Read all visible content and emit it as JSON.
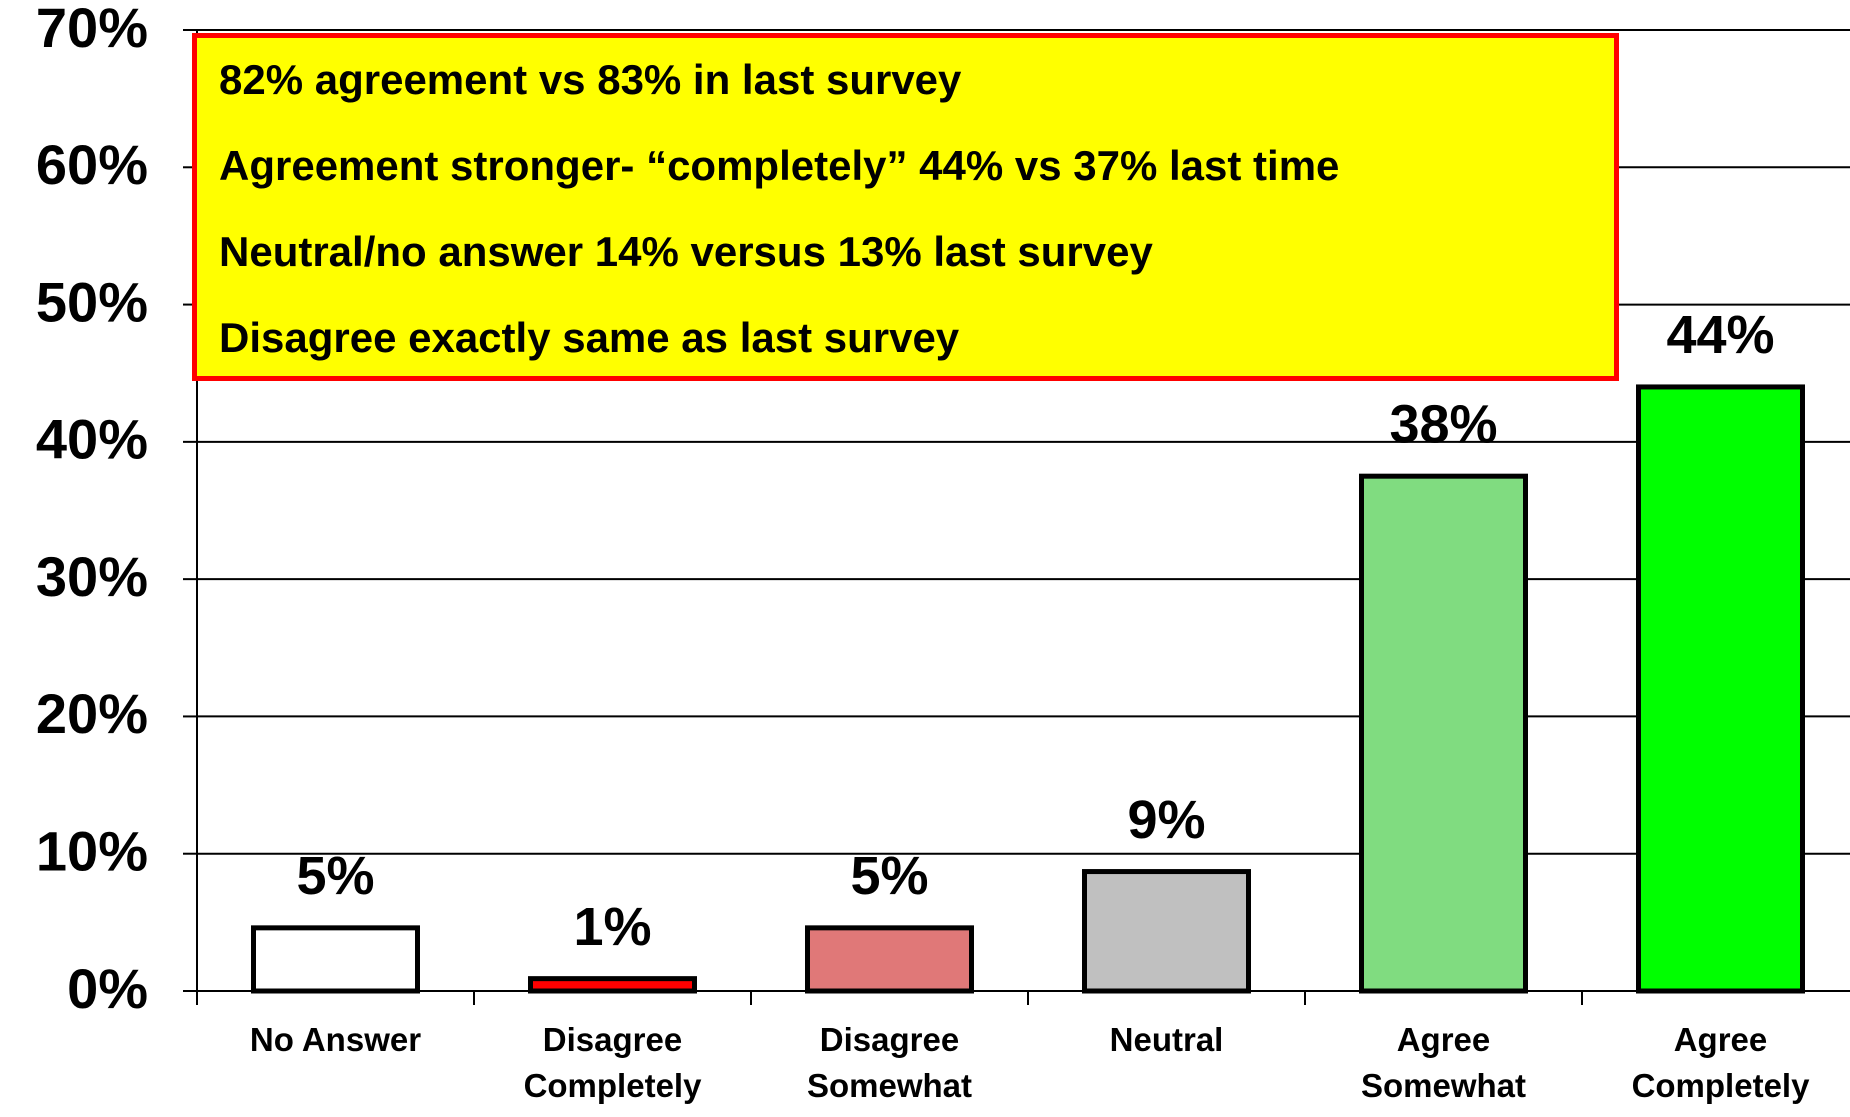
{
  "chart_data": {
    "type": "bar",
    "categories": [
      "No Answer",
      "Disagree Completely",
      "Disagree Somewhat",
      "Neutral",
      "Agree Somewhat",
      "Agree Completely"
    ],
    "values": [
      4.6,
      0.9,
      4.6,
      8.7,
      37.5,
      44
    ],
    "value_labels": [
      "5%",
      "1%",
      "5%",
      "9%",
      "38%",
      "44%"
    ],
    "colors": [
      "#ffffff",
      "#ff0000",
      "#e07878",
      "#c0c0c0",
      "#80dc80",
      "#00ff00"
    ],
    "ylim": [
      0,
      70
    ],
    "yticks": [
      {
        "value": 0,
        "label": "0%"
      },
      {
        "value": 10,
        "label": "10%"
      },
      {
        "value": 20,
        "label": "20%"
      },
      {
        "value": 30,
        "label": "30%"
      },
      {
        "value": 40,
        "label": "40%"
      },
      {
        "value": 50,
        "label": "50%"
      },
      {
        "value": 60,
        "label": "60%"
      },
      {
        "value": 70,
        "label": "70%"
      }
    ],
    "grid": true,
    "annotations": [
      "82% agreement vs 83% in last survey",
      "Agreement stronger- “completely” 44% vs 37% last time",
      "Neutral/no answer 14% versus 13% last survey",
      "Disagree exactly same as last survey"
    ]
  }
}
